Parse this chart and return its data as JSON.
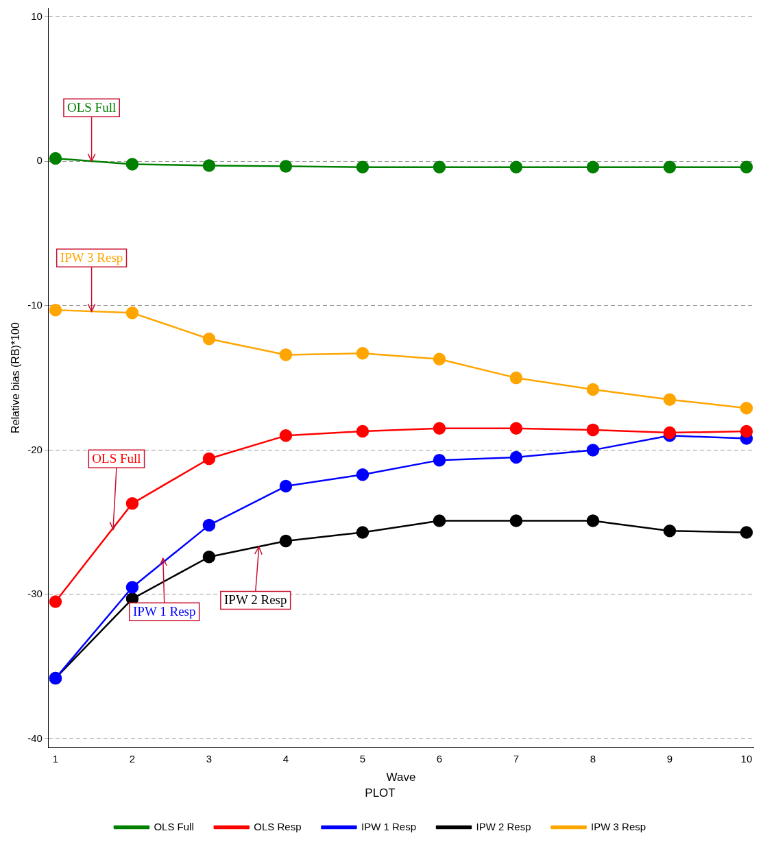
{
  "chart_data": {
    "type": "line",
    "xlabel": "Wave",
    "ylabel": "Relative bias (RB)*100",
    "legend_title": "PLOT",
    "legend": "bottom",
    "grid": "y",
    "marker": "circle",
    "line_style": "solid",
    "x": [
      1,
      2,
      3,
      4,
      5,
      6,
      7,
      8,
      9,
      10
    ],
    "xlim": [
      0.91,
      10.09
    ],
    "xticks": [
      1,
      2,
      3,
      4,
      5,
      6,
      7,
      8,
      9,
      10
    ],
    "ylim": [
      -40.6,
      10.6
    ],
    "yticks": [
      -40,
      -30,
      -20,
      -10,
      0,
      10
    ],
    "series": [
      {
        "name": "OLS Full",
        "color": "#008000",
        "values": [
          0.2,
          -0.2,
          -0.3,
          -0.35,
          -0.4,
          -0.4,
          -0.4,
          -0.4,
          -0.4,
          -0.4
        ]
      },
      {
        "name": "OLS Resp",
        "color": "#ff0000",
        "values": [
          -30.5,
          -23.7,
          -20.6,
          -19.0,
          -18.7,
          -18.5,
          -18.5,
          -18.6,
          -18.8,
          -18.7
        ]
      },
      {
        "name": "IPW 1 Resp",
        "color": "#0000ff",
        "values": [
          -35.8,
          -29.5,
          -25.2,
          -22.5,
          -21.7,
          -20.7,
          -20.5,
          -20.0,
          -19.0,
          -19.2
        ]
      },
      {
        "name": "IPW 2 Resp",
        "color": "#000000",
        "values": [
          -35.8,
          -30.3,
          -27.4,
          -26.3,
          -25.7,
          -24.9,
          -24.9,
          -24.9,
          -25.6,
          -25.7
        ]
      },
      {
        "name": "IPW 3 Resp",
        "color": "#ffa500",
        "values": [
          -10.3,
          -10.5,
          -12.3,
          -13.4,
          -13.3,
          -13.7,
          -15.0,
          -15.8,
          -16.5,
          -17.1
        ]
      }
    ],
    "annotations": [
      {
        "text": "OLS Full",
        "x": 1.47,
        "y": 0
      },
      {
        "text": "IPW 3 Resp",
        "x": 1.47,
        "y": -10.4
      },
      {
        "text": "OLS Full",
        "x": 1.75,
        "y": -25.5
      },
      {
        "text": "IPW 1 Resp",
        "x": 2.4,
        "y": -27.5
      },
      {
        "text": "IPW 2 Resp",
        "x": 3.65,
        "y": -26.7
      }
    ]
  }
}
